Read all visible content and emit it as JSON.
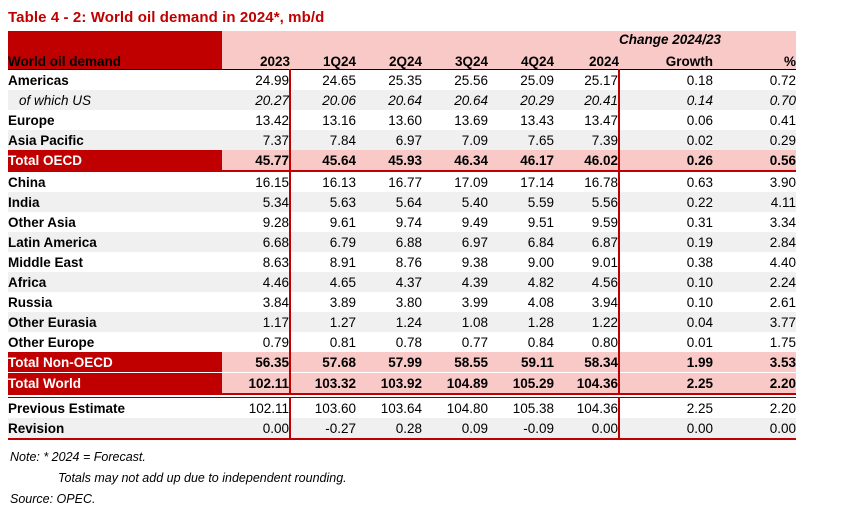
{
  "title": "Table 4 - 2: World oil demand in 2024*, mb/d",
  "colors": {
    "accent_red": "#C00000",
    "header_pink": "#F8C9C6",
    "stripe_gray": "#F0F0F0"
  },
  "table": {
    "header": {
      "label": "World oil demand",
      "change_header": "Change 2024/23",
      "columns": [
        "2023",
        "1Q24",
        "2Q24",
        "3Q24",
        "4Q24",
        "2024",
        "Growth",
        "%"
      ]
    },
    "rows": [
      {
        "label": "Americas",
        "type": "data",
        "values": [
          "24.99",
          "24.65",
          "25.35",
          "25.56",
          "25.09",
          "25.17",
          "0.18",
          "0.72"
        ]
      },
      {
        "label": "of which US",
        "type": "sub",
        "values": [
          "20.27",
          "20.06",
          "20.64",
          "20.64",
          "20.29",
          "20.41",
          "0.14",
          "0.70"
        ]
      },
      {
        "label": "Europe",
        "type": "data",
        "values": [
          "13.42",
          "13.16",
          "13.60",
          "13.69",
          "13.43",
          "13.47",
          "0.06",
          "0.41"
        ]
      },
      {
        "label": "Asia Pacific",
        "type": "data",
        "values": [
          "7.37",
          "7.84",
          "6.97",
          "7.09",
          "7.65",
          "7.39",
          "0.02",
          "0.29"
        ]
      },
      {
        "label": "Total OECD",
        "type": "total",
        "values": [
          "45.77",
          "45.64",
          "45.93",
          "46.34",
          "46.17",
          "46.02",
          "0.26",
          "0.56"
        ]
      },
      {
        "label": "China",
        "type": "data",
        "values": [
          "16.15",
          "16.13",
          "16.77",
          "17.09",
          "17.14",
          "16.78",
          "0.63",
          "3.90"
        ]
      },
      {
        "label": "India",
        "type": "data",
        "values": [
          "5.34",
          "5.63",
          "5.64",
          "5.40",
          "5.59",
          "5.56",
          "0.22",
          "4.11"
        ]
      },
      {
        "label": "Other Asia",
        "type": "data",
        "values": [
          "9.28",
          "9.61",
          "9.74",
          "9.49",
          "9.51",
          "9.59",
          "0.31",
          "3.34"
        ]
      },
      {
        "label": "Latin America",
        "type": "data",
        "values": [
          "6.68",
          "6.79",
          "6.88",
          "6.97",
          "6.84",
          "6.87",
          "0.19",
          "2.84"
        ]
      },
      {
        "label": "Middle East",
        "type": "data",
        "values": [
          "8.63",
          "8.91",
          "8.76",
          "9.38",
          "9.00",
          "9.01",
          "0.38",
          "4.40"
        ]
      },
      {
        "label": "Africa",
        "type": "data",
        "values": [
          "4.46",
          "4.65",
          "4.37",
          "4.39",
          "4.82",
          "4.56",
          "0.10",
          "2.24"
        ]
      },
      {
        "label": "Russia",
        "type": "data",
        "values": [
          "3.84",
          "3.89",
          "3.80",
          "3.99",
          "4.08",
          "3.94",
          "0.10",
          "2.61"
        ]
      },
      {
        "label": "Other Eurasia",
        "type": "data",
        "values": [
          "1.17",
          "1.27",
          "1.24",
          "1.08",
          "1.28",
          "1.22",
          "0.04",
          "3.77"
        ]
      },
      {
        "label": "Other Europe",
        "type": "data",
        "values": [
          "0.79",
          "0.81",
          "0.78",
          "0.77",
          "0.84",
          "0.80",
          "0.01",
          "1.75"
        ]
      },
      {
        "label": "Total Non-OECD",
        "type": "total",
        "values": [
          "56.35",
          "57.68",
          "57.99",
          "58.55",
          "59.11",
          "58.34",
          "1.99",
          "3.53"
        ]
      },
      {
        "label": "Total World",
        "type": "total",
        "values": [
          "102.11",
          "103.32",
          "103.92",
          "104.89",
          "105.29",
          "104.36",
          "2.25",
          "2.20"
        ]
      }
    ],
    "footer_rows": [
      {
        "label": "Previous Estimate",
        "values": [
          "102.11",
          "103.60",
          "103.64",
          "104.80",
          "105.38",
          "104.36",
          "2.25",
          "2.20"
        ]
      },
      {
        "label": "Revision",
        "values": [
          "0.00",
          "-0.27",
          "0.28",
          "0.09",
          "-0.09",
          "0.00",
          "0.00",
          "0.00"
        ]
      }
    ]
  },
  "notes": {
    "line1": "Note: * 2024 = Forecast.",
    "line2": "Totals may not add up due to independent rounding.",
    "source": "Source: OPEC."
  }
}
